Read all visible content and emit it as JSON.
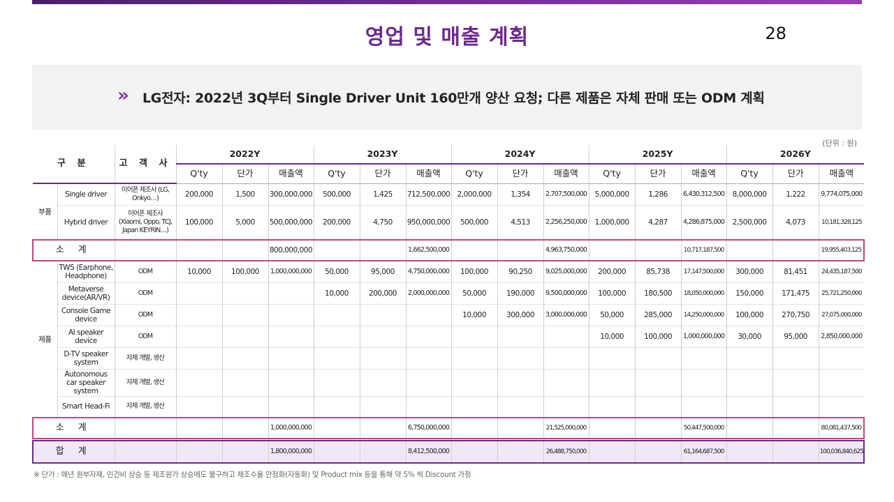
{
  "page": {
    "title": "영업 및 매출 계획",
    "number": "28"
  },
  "banner": {
    "icon": "double-chevron-right",
    "text": "LG전자: 2022년 3Q부터 Single Driver Unit 160만개 양산 요청; 다른 제품은 자체 판매 또는 ODM 계획"
  },
  "unit_note": "(단위 : 원)",
  "table": {
    "header": {
      "category": "구 분",
      "customer": "고 객 사",
      "years": [
        "2022Y",
        "2023Y",
        "2024Y",
        "2025Y",
        "2026Y"
      ],
      "qty": "Q'ty",
      "price": "단가",
      "sales": "매출액"
    },
    "parts": {
      "group": "부품",
      "rows": [
        {
          "name": "Single driver",
          "customer": "이어폰 제조사 (LG, Onkyo…)",
          "cells": [
            "200,000",
            "1,500",
            "300,000,000",
            "500,000",
            "1,425",
            "712,500,000",
            "2,000,000",
            "1,354",
            "2,707,500,000",
            "5,000,000",
            "1,286",
            "6,430,312,500",
            "8,000,000",
            "1,222",
            "9,774,075,000"
          ]
        },
        {
          "name": "Hybrid driver",
          "customer": "이어폰 제조사 (Xiaomi, Oppo, TCJ, Japan KEYRIN…)",
          "cells": [
            "100,000",
            "5,000",
            "500,000,000",
            "200,000",
            "4,750",
            "950,000,000",
            "500,000",
            "4,513",
            "2,256,250,000",
            "1,000,000",
            "4,287",
            "4,286,875,000",
            "2,500,000",
            "4,073",
            "10,181,328,125"
          ]
        }
      ],
      "subtotal": {
        "label": "소 계",
        "values": [
          "800,000,000",
          "1,662,500,000",
          "4,963,750,000",
          "10,717,187,500",
          "19,955,403,125"
        ]
      }
    },
    "products": {
      "group": "제품",
      "rows": [
        {
          "name": "TWS (Earphone, Headphone)",
          "customer": "ODM",
          "cells": [
            "10,000",
            "100,000",
            "1,000,000,000",
            "50,000",
            "95,000",
            "4,750,000,000",
            "100,000",
            "90,250",
            "9,025,000,000",
            "200,000",
            "85,738",
            "17,147,500,000",
            "300,000",
            "81,451",
            "24,435,187,500"
          ]
        },
        {
          "name": "Metaverse device(AR/VR)",
          "customer": "ODM",
          "cells": [
            "",
            "",
            "",
            "10,000",
            "200,000",
            "2,000,000,000",
            "50,000",
            "190,000",
            "9,500,000,000",
            "100,000",
            "180,500",
            "18,050,000,000",
            "150,000",
            "171,475",
            "25,721,250,000"
          ]
        },
        {
          "name": "Console Game device",
          "customer": "ODM",
          "cells": [
            "",
            "",
            "",
            "",
            "",
            "",
            "10,000",
            "300,000",
            "3,000,000,000",
            "50,000",
            "285,000",
            "14,250,000,000",
            "100,000",
            "270,750",
            "27,075,000,000"
          ]
        },
        {
          "name": "AI speaker device",
          "customer": "ODM",
          "cells": [
            "",
            "",
            "",
            "",
            "",
            "",
            "",
            "",
            "",
            "10,000",
            "100,000",
            "1,000,000,000",
            "30,000",
            "95,000",
            "2,850,000,000"
          ]
        },
        {
          "name": "D-TV speaker system",
          "customer": "자체 개발, 생산",
          "cells": [
            "",
            "",
            "",
            "",
            "",
            "",
            "",
            "",
            "",
            "",
            "",
            "",
            "",
            "",
            ""
          ]
        },
        {
          "name": "Autonomous car speaker system",
          "customer": "자체 개발, 생산",
          "cells": [
            "",
            "",
            "",
            "",
            "",
            "",
            "",
            "",
            "",
            "",
            "",
            "",
            "",
            "",
            ""
          ]
        },
        {
          "name": "Smart Head-Fi",
          "customer": "자체 개발, 생산",
          "cells": [
            "",
            "",
            "",
            "",
            "",
            "",
            "",
            "",
            "",
            "",
            "",
            "",
            "",
            "",
            ""
          ]
        }
      ],
      "subtotal": {
        "label": "소 계",
        "values": [
          "1,000,000,000",
          "6,750,000,000",
          "21,525,000,000",
          "50,447,500,000",
          "80,081,437,500"
        ]
      }
    },
    "total": {
      "label": "합 계",
      "values": [
        "1,800,000,000",
        "8,412,500,000",
        "26,488,750,000",
        "61,164,687,500",
        "100,036,840,625"
      ]
    }
  },
  "footnote": "※ 단가 : 매년 원부자재, 인건비 상승 등 제조원가 상승에도 불구하고 제조수율 안정화(자동화) 및 Product mix 등을 통해 약 5% 씩 Discount 가정",
  "colors": {
    "accent": "#6a2a8c",
    "subtotal_border": "#c2457e",
    "total_bg": "#f1e8f6",
    "banner_bg": "#f2f2f2"
  }
}
